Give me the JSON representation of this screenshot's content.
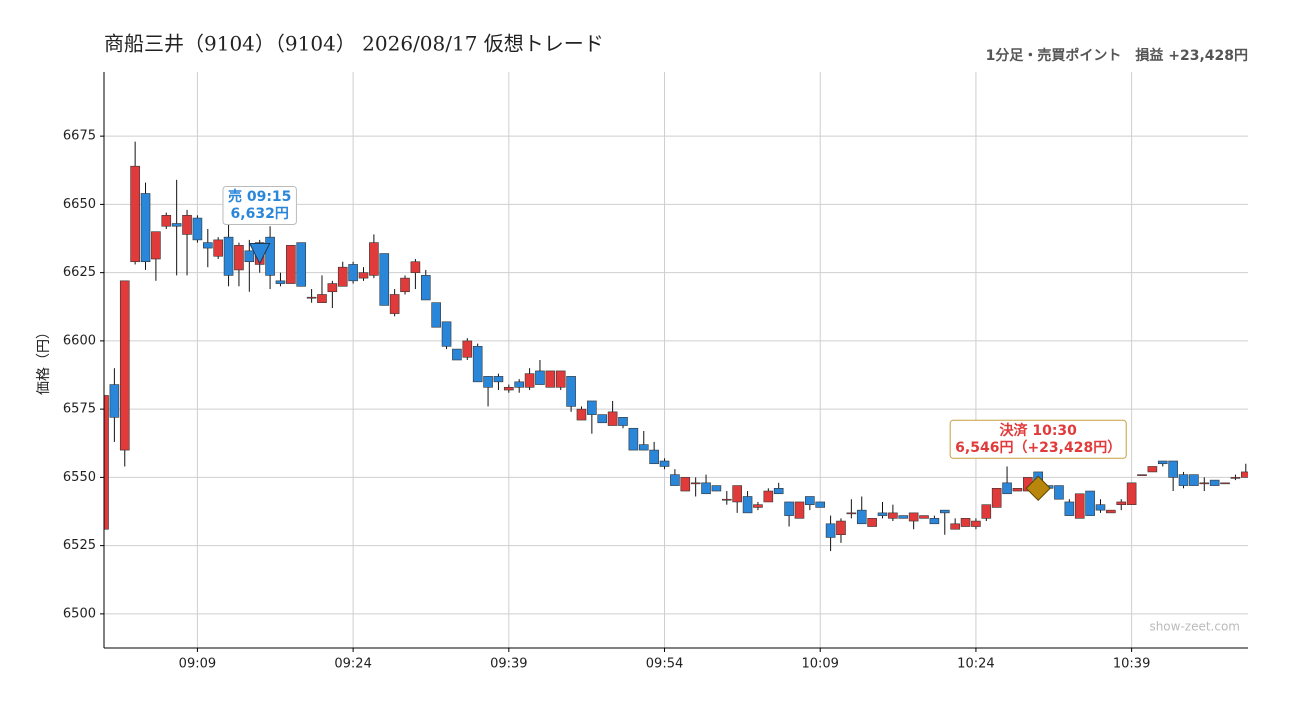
{
  "chart_data": {
    "type": "candlestick",
    "title": "商船三井（9104）（9104） 2026/08/17 仮想トレード",
    "subtitle": "1分足・売買ポイント　損益 +23,428円",
    "y_label": "価格（円）",
    "watermark": "show-zeet.com",
    "up_color": "#e03a3a",
    "down_color": "#2a86d9",
    "grid": true,
    "xlim": [
      "09:00",
      "10:50"
    ],
    "xticks": [
      "09:09",
      "09:24",
      "09:39",
      "09:54",
      "10:09",
      "10:24",
      "10:39"
    ],
    "ylim": [
      6487.5,
      6698.5
    ],
    "yticks": [
      6500,
      6525,
      6550,
      6575,
      6600,
      6625,
      6650,
      6675
    ],
    "x": [
      "09:00",
      "09:01",
      "09:02",
      "09:03",
      "09:04",
      "09:05",
      "09:06",
      "09:07",
      "09:08",
      "09:09",
      "09:10",
      "09:11",
      "09:12",
      "09:13",
      "09:14",
      "09:15",
      "09:16",
      "09:17",
      "09:18",
      "09:19",
      "09:20",
      "09:21",
      "09:22",
      "09:23",
      "09:24",
      "09:25",
      "09:26",
      "09:27",
      "09:28",
      "09:29",
      "09:30",
      "09:31",
      "09:32",
      "09:33",
      "09:34",
      "09:35",
      "09:36",
      "09:37",
      "09:38",
      "09:39",
      "09:40",
      "09:41",
      "09:42",
      "09:43",
      "09:44",
      "09:45",
      "09:46",
      "09:47",
      "09:48",
      "09:49",
      "09:50",
      "09:51",
      "09:52",
      "09:53",
      "09:54",
      "09:55",
      "09:56",
      "09:57",
      "09:58",
      "09:59",
      "10:00",
      "10:01",
      "10:02",
      "10:03",
      "10:04",
      "10:05",
      "10:06",
      "10:07",
      "10:08",
      "10:09",
      "10:10",
      "10:11",
      "10:12",
      "10:13",
      "10:14",
      "10:15",
      "10:16",
      "10:17",
      "10:18",
      "10:19",
      "10:20",
      "10:21",
      "10:22",
      "10:23",
      "10:24",
      "10:25",
      "10:26",
      "10:27",
      "10:28",
      "10:29",
      "10:30",
      "10:31",
      "10:32",
      "10:33",
      "10:34",
      "10:35",
      "10:36",
      "10:37",
      "10:38",
      "10:39",
      "10:40",
      "10:41",
      "10:42",
      "10:43",
      "10:44",
      "10:45",
      "10:46",
      "10:47",
      "10:48",
      "10:49",
      "10:50"
    ],
    "open": [
      6531,
      6584,
      6560,
      6629,
      6654,
      6630,
      6642,
      6643,
      6639,
      6645,
      6636,
      6631,
      6638,
      6626,
      6633,
      6628,
      6638,
      6622,
      6621,
      6636,
      6616,
      6614,
      6618,
      6620,
      6628,
      6623,
      6624,
      6632,
      6610,
      6618,
      6625,
      6624,
      6614,
      6607,
      6597,
      6594,
      6598,
      6587,
      6587,
      6582,
      6585,
      6583,
      6589,
      6583,
      6583,
      6587,
      6571,
      6578,
      6573,
      6569,
      6572,
      6568,
      6562,
      6560,
      6556,
      6551,
      6545,
      6548,
      6548,
      6547,
      6542,
      6541,
      6543,
      6539,
      6541,
      6546,
      6541,
      6535,
      6543,
      6541,
      6533,
      6529,
      6537,
      6538,
      6532,
      6537,
      6535,
      6536,
      6534,
      6535,
      6535,
      6538,
      6531,
      6532,
      6532,
      6535,
      6539,
      6548,
      6545,
      6545,
      6552,
      6547,
      6547,
      6541,
      6535,
      6545,
      6540,
      6537,
      6540,
      6540,
      6551,
      6552,
      6556,
      6556,
      6551,
      6551,
      6548,
      6549,
      6548,
      6550,
      6550
    ],
    "high": [
      6580,
      6590,
      6622,
      6673,
      6658,
      6640,
      6647,
      6659,
      6648,
      6646,
      6641,
      6638,
      6643,
      6636,
      6637,
      6637,
      6642,
      6625,
      6635,
      6636,
      6619,
      6624,
      6622,
      6629,
      6629,
      6627,
      6639,
      6632,
      6619,
      6624,
      6630,
      6626,
      6614,
      6607,
      6597,
      6601,
      6599,
      6587,
      6588,
      6584,
      6586,
      6590,
      6593,
      6589,
      6589,
      6587,
      6576,
      6578,
      6573,
      6578,
      6572,
      6568,
      6567,
      6563,
      6557,
      6553,
      6550,
      6550,
      6551,
      6547,
      6545,
      6547,
      6545,
      6541,
      6546,
      6548,
      6541,
      6541,
      6543,
      6541,
      6536,
      6535,
      6542,
      6543,
      6535,
      6541,
      6540,
      6536,
      6537,
      6536,
      6536,
      6538,
      6535,
      6535,
      6535,
      6540,
      6546,
      6554,
      6546,
      6550,
      6552,
      6547,
      6547,
      6542,
      6544,
      6545,
      6542,
      6538,
      6542,
      6548,
      6551,
      6554,
      6556,
      6556,
      6552,
      6551,
      6550,
      6549,
      6548,
      6551,
      6555
    ],
    "low": [
      6531,
      6563,
      6554,
      6628,
      6626,
      6622,
      6641,
      6624,
      6624,
      6636,
      6627,
      6630,
      6620,
      6620,
      6618,
      6625,
      6619,
      6620,
      6621,
      6620,
      6614,
      6614,
      6612,
      6620,
      6621,
      6622,
      6623,
      6613,
      6609,
      6617,
      6619,
      6615,
      6605,
      6597,
      6593,
      6593,
      6585,
      6576,
      6582,
      6581,
      6581,
      6582,
      6584,
      6583,
      6582,
      6574,
      6571,
      6566,
      6570,
      6569,
      6568,
      6560,
      6560,
      6555,
      6553,
      6547,
      6545,
      6543,
      6544,
      6545,
      6540,
      6537,
      6537,
      6538,
      6541,
      6544,
      6532,
      6535,
      6538,
      6539,
      6523,
      6526,
      6535,
      6533,
      6532,
      6535,
      6534,
      6535,
      6531,
      6535,
      6533,
      6529,
      6531,
      6532,
      6531,
      6534,
      6539,
      6544,
      6545,
      6545,
      6546,
      6546,
      6542,
      6536,
      6535,
      6536,
      6537,
      6537,
      6538,
      6540,
      6551,
      6552,
      6554,
      6545,
      6546,
      6547,
      6545,
      6547,
      6548,
      6549,
      6550
    ],
    "close": [
      6580,
      6572,
      6622,
      6664,
      6629,
      6640,
      6646,
      6642,
      6646,
      6637,
      6634,
      6637,
      6624,
      6635,
      6629,
      6636,
      6624,
      6621,
      6635,
      6620,
      6616,
      6617,
      6621,
      6627,
      6622,
      6625,
      6636,
      6613,
      6617,
      6623,
      6629,
      6615,
      6605,
      6598,
      6593,
      6600,
      6585,
      6583,
      6585,
      6583,
      6583,
      6588,
      6584,
      6589,
      6589,
      6576,
      6575,
      6573,
      6570,
      6574,
      6569,
      6560,
      6560,
      6555,
      6554,
      6547,
      6550,
      6548,
      6544,
      6545,
      6542,
      6547,
      6537,
      6540,
      6545,
      6544,
      6536,
      6541,
      6540,
      6539,
      6528,
      6534,
      6537,
      6533,
      6535,
      6536,
      6537,
      6535,
      6537,
      6536,
      6533,
      6537,
      6533,
      6535,
      6534,
      6540,
      6546,
      6544,
      6546,
      6550,
      6546,
      6546,
      6542,
      6536,
      6544,
      6536,
      6538,
      6538,
      6541,
      6548,
      6551,
      6554,
      6555,
      6550,
      6547,
      6547,
      6548,
      6547,
      6548,
      6550,
      6552
    ],
    "annotations": [
      {
        "lines": [
          "売 09:15",
          "6,632円"
        ],
        "x": "09:15",
        "y": 6632,
        "marker": "sell",
        "color": "#2a86d9"
      },
      {
        "lines": [
          "決済 10:30",
          "6,546円（+23,428円）"
        ],
        "x": "10:30",
        "y": 6546,
        "marker": "settle",
        "color": "#e03a3a"
      }
    ]
  }
}
